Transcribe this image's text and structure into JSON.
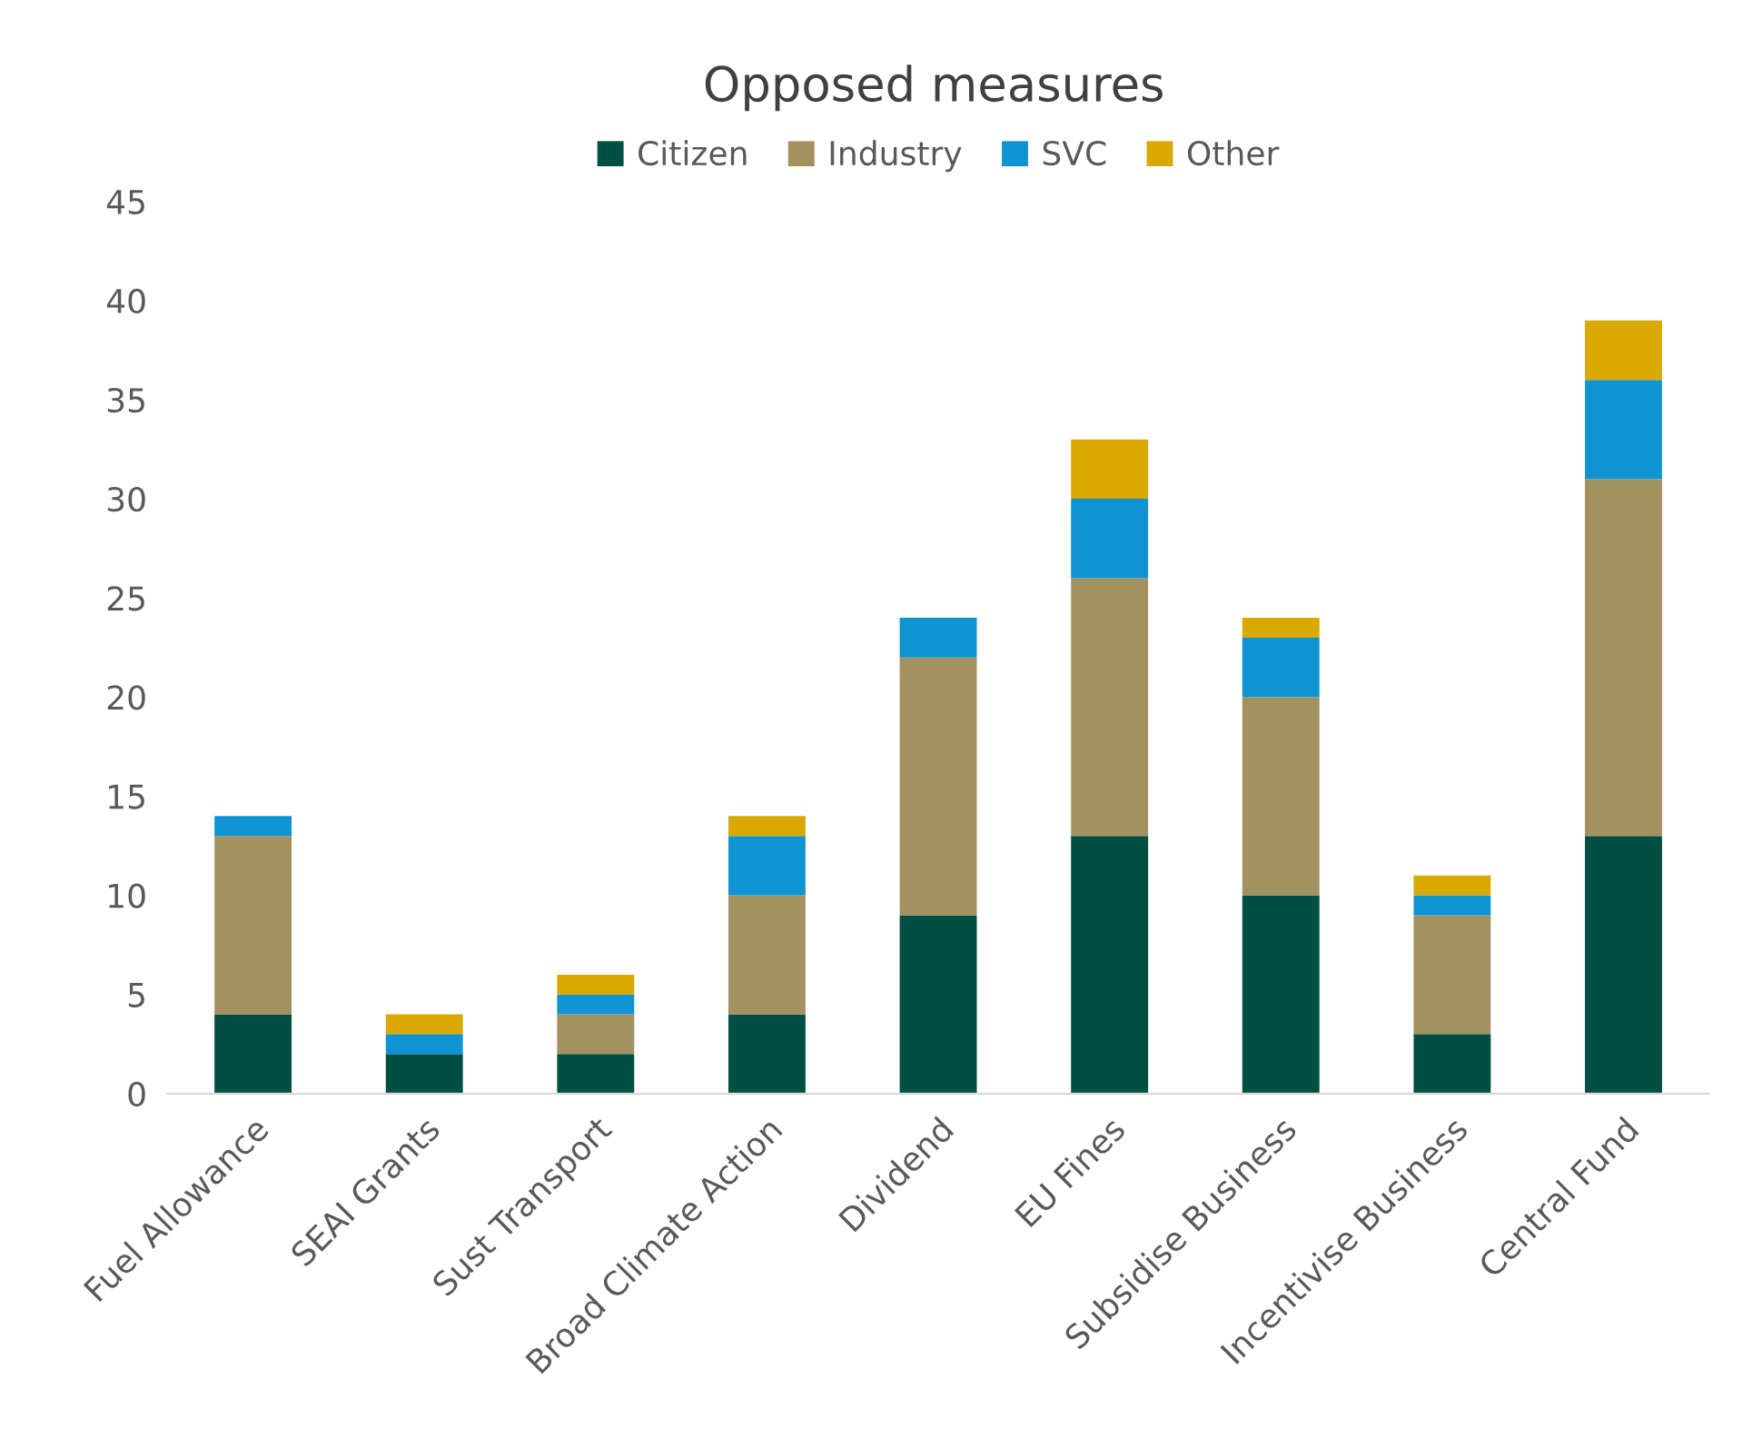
{
  "chart_data": {
    "type": "bar",
    "title": "Opposed measures",
    "stacked": true,
    "legend": "top",
    "grid": false,
    "categories": [
      "Fuel Allowance",
      "SEAI Grants",
      "Sust Transport",
      "Broad Climate Action",
      "Dividend",
      "EU Fines",
      "Subsidise Business",
      "Incentivise Business",
      "Central Fund"
    ],
    "series": [
      {
        "name": "Citizen",
        "color": "#004f43",
        "values": [
          4,
          2,
          2,
          4,
          9,
          13,
          10,
          3,
          13
        ]
      },
      {
        "name": "Industry",
        "color": "#a39160",
        "values": [
          9,
          0,
          2,
          6,
          13,
          13,
          10,
          6,
          18
        ]
      },
      {
        "name": "SVC",
        "color": "#0e94d2",
        "values": [
          1,
          1,
          1,
          3,
          2,
          4,
          3,
          1,
          5
        ]
      },
      {
        "name": "Other",
        "color": "#d9a900",
        "values": [
          0,
          1,
          1,
          1,
          0,
          3,
          1,
          1,
          3
        ]
      }
    ],
    "ylim": [
      0,
      45
    ],
    "yticks": [
      0,
      5,
      10,
      15,
      20,
      25,
      30,
      35,
      40,
      45
    ]
  }
}
